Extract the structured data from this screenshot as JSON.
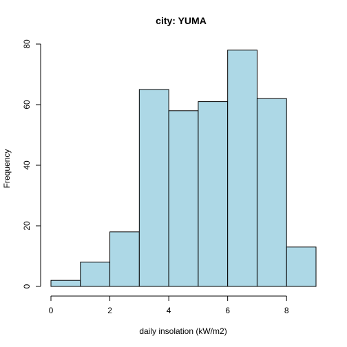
{
  "chart_data": {
    "type": "bar",
    "title": "city: YUMA",
    "xlabel": "daily insolation (kW/m2)",
    "ylabel": "Frequency",
    "bins": [
      {
        "x0": 0,
        "x1": 1,
        "count": 2
      },
      {
        "x0": 1,
        "x1": 2,
        "count": 8
      },
      {
        "x0": 2,
        "x1": 3,
        "count": 18
      },
      {
        "x0": 3,
        "x1": 4,
        "count": 65
      },
      {
        "x0": 4,
        "x1": 5,
        "count": 58
      },
      {
        "x0": 5,
        "x1": 6,
        "count": 61
      },
      {
        "x0": 6,
        "x1": 7,
        "count": 78
      },
      {
        "x0": 7,
        "x1": 8,
        "count": 62
      },
      {
        "x0": 8,
        "x1": 9,
        "count": 13
      }
    ],
    "xticks": [
      0,
      2,
      4,
      6,
      8
    ],
    "yticks": [
      0,
      20,
      40,
      60,
      80
    ],
    "xlim": [
      0,
      9
    ],
    "ylim": [
      0,
      80
    ],
    "bar_color": "#add8e6",
    "grid": false
  }
}
